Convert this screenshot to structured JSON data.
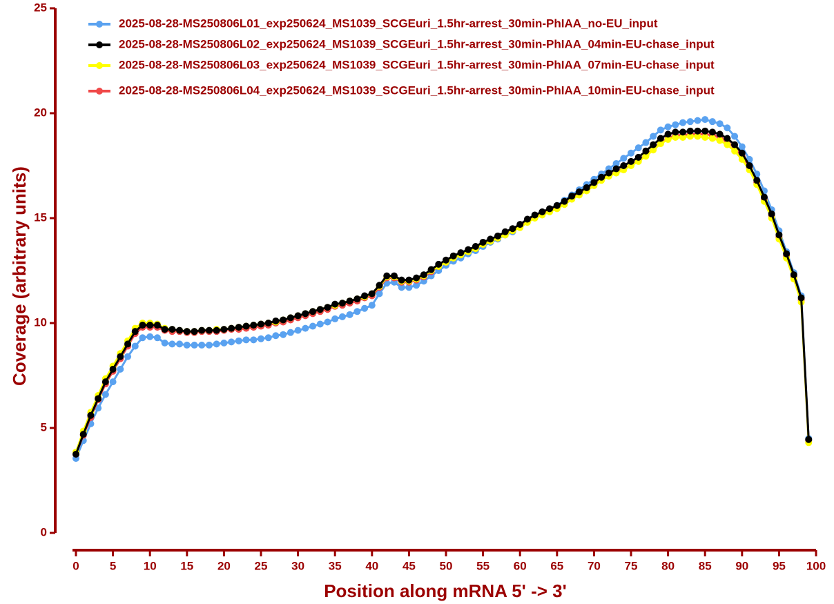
{
  "chart_data": {
    "type": "line",
    "xlabel": "Position along mRNA 5' -> 3'",
    "ylabel": "Coverage (arbitrary units)",
    "x": [
      0,
      1,
      2,
      3,
      4,
      5,
      6,
      7,
      8,
      9,
      10,
      11,
      12,
      13,
      14,
      15,
      16,
      17,
      18,
      19,
      20,
      21,
      22,
      23,
      24,
      25,
      26,
      27,
      28,
      29,
      30,
      31,
      32,
      33,
      34,
      35,
      36,
      37,
      38,
      39,
      40,
      41,
      42,
      43,
      44,
      45,
      46,
      47,
      48,
      49,
      50,
      51,
      52,
      53,
      54,
      55,
      56,
      57,
      58,
      59,
      60,
      61,
      62,
      63,
      64,
      65,
      66,
      67,
      68,
      69,
      70,
      71,
      72,
      73,
      74,
      75,
      76,
      77,
      78,
      79,
      80,
      81,
      82,
      83,
      84,
      85,
      86,
      87,
      88,
      89,
      90,
      91,
      92,
      93,
      94,
      95,
      96,
      97,
      98,
      99
    ],
    "xlim": [
      0,
      100
    ],
    "xticks": [
      0,
      5,
      10,
      15,
      20,
      25,
      30,
      35,
      40,
      45,
      50,
      55,
      60,
      65,
      70,
      75,
      80,
      85,
      90,
      95,
      100
    ],
    "ylim": [
      0,
      25
    ],
    "yticks": [
      0,
      5,
      10,
      15,
      20,
      25
    ],
    "axis_color": "#9b0000",
    "series": [
      {
        "name": "2025-08-28-MS250806L01_exp250624_MS1039_SCGEuri_1.5hr-arrest_30min-PhIAA_no-EU_input",
        "color": "#5aa2f0",
        "values": [
          3.55,
          4.4,
          5.2,
          5.95,
          6.6,
          7.2,
          7.8,
          8.4,
          8.9,
          9.3,
          9.35,
          9.3,
          9.05,
          9.0,
          9.0,
          8.95,
          8.95,
          8.95,
          8.95,
          9.0,
          9.05,
          9.1,
          9.15,
          9.2,
          9.2,
          9.25,
          9.3,
          9.4,
          9.45,
          9.55,
          9.65,
          9.75,
          9.85,
          9.95,
          10.05,
          10.2,
          10.3,
          10.4,
          10.55,
          10.7,
          10.85,
          11.4,
          11.9,
          11.95,
          11.7,
          11.7,
          11.8,
          12.0,
          12.25,
          12.5,
          12.75,
          12.95,
          13.1,
          13.3,
          13.45,
          13.65,
          13.85,
          14.0,
          14.2,
          14.35,
          14.6,
          14.85,
          15.05,
          15.25,
          15.4,
          15.6,
          15.85,
          16.1,
          16.35,
          16.6,
          16.85,
          17.1,
          17.35,
          17.6,
          17.85,
          18.1,
          18.35,
          18.6,
          18.9,
          19.2,
          19.35,
          19.45,
          19.55,
          19.6,
          19.65,
          19.7,
          19.6,
          19.5,
          19.3,
          18.9,
          18.4,
          17.8,
          17.1,
          16.3,
          15.4,
          14.4,
          13.4,
          12.4,
          11.3,
          4.5
        ]
      },
      {
        "name": "2025-08-28-MS250806L02_exp250624_MS1039_SCGEuri_1.5hr-arrest_30min-PhIAA_04min-EU-chase_input",
        "color": "#000000",
        "values": [
          3.75,
          4.7,
          5.6,
          6.4,
          7.2,
          7.8,
          8.4,
          9.0,
          9.6,
          9.9,
          9.9,
          9.9,
          9.7,
          9.7,
          9.65,
          9.6,
          9.6,
          9.65,
          9.65,
          9.65,
          9.7,
          9.75,
          9.8,
          9.85,
          9.9,
          9.95,
          10.0,
          10.1,
          10.15,
          10.25,
          10.35,
          10.45,
          10.55,
          10.65,
          10.75,
          10.9,
          10.95,
          11.05,
          11.15,
          11.3,
          11.4,
          11.8,
          12.25,
          12.25,
          12.05,
          12.05,
          12.15,
          12.3,
          12.55,
          12.8,
          13.0,
          13.2,
          13.35,
          13.5,
          13.65,
          13.85,
          14.0,
          14.15,
          14.35,
          14.5,
          14.7,
          14.95,
          15.15,
          15.3,
          15.45,
          15.6,
          15.8,
          16.05,
          16.25,
          16.45,
          16.7,
          16.95,
          17.15,
          17.35,
          17.5,
          17.7,
          17.9,
          18.2,
          18.5,
          18.8,
          19.0,
          19.1,
          19.1,
          19.15,
          19.15,
          19.15,
          19.1,
          19.0,
          18.8,
          18.5,
          18.1,
          17.5,
          16.8,
          16.0,
          15.2,
          14.2,
          13.3,
          12.3,
          11.2,
          4.45
        ]
      },
      {
        "name": "2025-08-28-MS250806L03_exp250624_MS1039_SCGEuri_1.5hr-arrest_30min-PhIAA_07min-EU-chase_input",
        "color": "#ffff00",
        "values": [
          3.85,
          4.85,
          5.75,
          6.55,
          7.35,
          7.95,
          8.55,
          9.15,
          9.75,
          10.0,
          10.0,
          9.95,
          9.75,
          9.7,
          9.65,
          9.6,
          9.6,
          9.65,
          9.65,
          9.7,
          9.7,
          9.75,
          9.8,
          9.85,
          9.9,
          9.95,
          10.0,
          10.05,
          10.15,
          10.25,
          10.35,
          10.45,
          10.55,
          10.65,
          10.75,
          10.85,
          10.95,
          11.05,
          11.15,
          11.25,
          11.4,
          11.75,
          12.2,
          12.2,
          12.0,
          12.0,
          12.1,
          12.25,
          12.5,
          12.7,
          12.9,
          13.1,
          13.25,
          13.4,
          13.55,
          13.75,
          13.9,
          14.05,
          14.2,
          14.4,
          14.55,
          14.8,
          15.0,
          15.15,
          15.3,
          15.45,
          15.65,
          15.9,
          16.1,
          16.3,
          16.55,
          16.8,
          17.0,
          17.15,
          17.3,
          17.5,
          17.7,
          17.95,
          18.25,
          18.55,
          18.75,
          18.85,
          18.85,
          18.9,
          18.9,
          18.85,
          18.8,
          18.7,
          18.5,
          18.2,
          17.8,
          17.3,
          16.6,
          15.8,
          15.0,
          14.0,
          13.1,
          12.1,
          11.0,
          4.3
        ]
      },
      {
        "name": "2025-08-28-MS250806L04_exp250624_MS1039_SCGEuri_1.5hr-arrest_30min-PhIAA_10min-EU-chase_input",
        "color": "#f04848",
        "values": [
          3.75,
          4.65,
          5.5,
          6.35,
          7.1,
          7.7,
          8.3,
          8.9,
          9.5,
          9.8,
          9.8,
          9.8,
          9.65,
          9.6,
          9.6,
          9.55,
          9.55,
          9.6,
          9.6,
          9.6,
          9.65,
          9.7,
          9.7,
          9.75,
          9.8,
          9.85,
          9.9,
          10.0,
          10.05,
          10.15,
          10.25,
          10.35,
          10.45,
          10.55,
          10.65,
          10.8,
          10.85,
          10.95,
          11.05,
          11.2,
          11.3,
          11.7,
          12.15,
          12.15,
          11.95,
          11.95,
          12.05,
          12.2,
          12.45,
          12.7,
          12.9,
          13.1,
          13.25,
          13.4,
          13.55,
          13.75,
          13.9,
          14.05,
          14.25,
          14.4,
          14.6,
          14.85,
          15.05,
          15.2,
          15.35,
          15.5,
          15.7,
          15.95,
          16.15,
          16.35,
          16.6,
          16.85,
          17.05,
          17.2,
          17.35,
          17.55,
          17.75,
          18.0,
          18.3,
          18.6,
          18.8,
          18.95,
          18.95,
          19.0,
          19.0,
          19.0,
          18.95,
          18.85,
          18.65,
          18.35,
          17.95,
          17.4,
          16.7,
          15.9,
          15.1,
          14.1,
          13.2,
          12.2,
          11.1,
          4.4
        ]
      }
    ]
  }
}
